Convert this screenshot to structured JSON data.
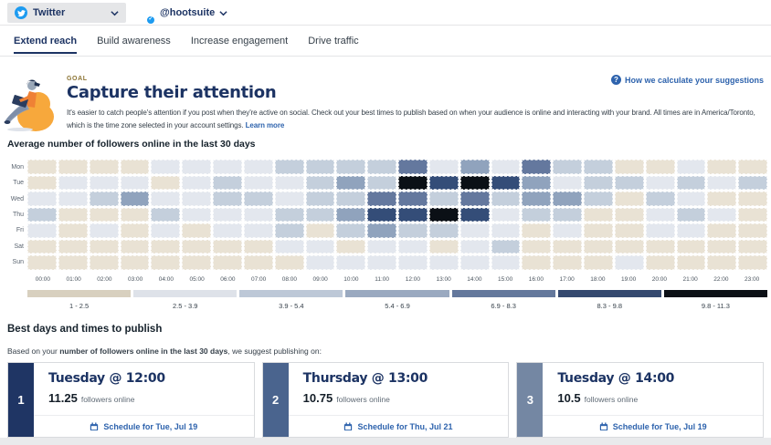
{
  "header": {
    "network": {
      "label": "Twitter"
    },
    "account": {
      "handle": "@hootsuite"
    }
  },
  "tabs": [
    {
      "label": "Extend reach",
      "active": true
    },
    {
      "label": "Build awareness",
      "active": false
    },
    {
      "label": "Increase engagement",
      "active": false
    },
    {
      "label": "Drive traffic",
      "active": false
    }
  ],
  "goal": {
    "eyebrow": "GOAL",
    "title": "Capture their attention",
    "description": "It's easier to catch people's attention if you post when they're active on social. Check out your best times to publish based on when your audience is online and interacting with your brand. All times are in America/Toronto, which is the time zone selected in your account settings. ",
    "learn_more": "Learn more",
    "help_link": "How we calculate your suggestions"
  },
  "chart_data": {
    "type": "heatmap",
    "title": "Average number of followers online in the last 30 days",
    "rows": [
      "Mon",
      "Tue",
      "Wed",
      "Thu",
      "Fri",
      "Sat",
      "Sun"
    ],
    "columns": [
      "00:00",
      "01:00",
      "02:00",
      "03:00",
      "04:00",
      "05:00",
      "06:00",
      "07:00",
      "08:00",
      "09:00",
      "10:00",
      "11:00",
      "12:00",
      "13:00",
      "14:00",
      "15:00",
      "16:00",
      "17:00",
      "18:00",
      "19:00",
      "20:00",
      "21:00",
      "22:00",
      "23:00"
    ],
    "note": "values are bin indices 1-7 mapping to legend ranges of average followers online",
    "values": [
      [
        1,
        1,
        1,
        1,
        2,
        2,
        2,
        2,
        3,
        3,
        3,
        3,
        5,
        2,
        4,
        2,
        5,
        3,
        3,
        1,
        1,
        2,
        1,
        1
      ],
      [
        1,
        2,
        2,
        2,
        1,
        2,
        3,
        2,
        2,
        3,
        4,
        3,
        7,
        6,
        7,
        6,
        4,
        2,
        3,
        3,
        2,
        3,
        2,
        3
      ],
      [
        2,
        2,
        3,
        4,
        2,
        2,
        3,
        3,
        2,
        3,
        3,
        5,
        5,
        3,
        5,
        3,
        4,
        4,
        3,
        1,
        3,
        2,
        1,
        1
      ],
      [
        3,
        1,
        1,
        1,
        3,
        2,
        2,
        2,
        3,
        3,
        4,
        6,
        6,
        7,
        6,
        2,
        3,
        3,
        1,
        1,
        2,
        3,
        2,
        1
      ],
      [
        2,
        1,
        2,
        1,
        2,
        1,
        2,
        2,
        3,
        1,
        3,
        4,
        3,
        3,
        2,
        2,
        1,
        2,
        1,
        1,
        2,
        2,
        1,
        1
      ],
      [
        1,
        1,
        1,
        1,
        1,
        1,
        1,
        1,
        2,
        2,
        1,
        2,
        2,
        1,
        2,
        3,
        1,
        1,
        1,
        1,
        1,
        1,
        1,
        1
      ],
      [
        1,
        1,
        1,
        1,
        1,
        1,
        1,
        1,
        1,
        2,
        2,
        2,
        2,
        2,
        2,
        2,
        1,
        1,
        1,
        2,
        1,
        1,
        1,
        1
      ]
    ],
    "legend": [
      "1 - 2.5",
      "2.5 - 3.9",
      "3.9 - 5.4",
      "5.4 - 6.9",
      "6.9 - 8.3",
      "8.3 - 9.8",
      "9.8 - 11.3"
    ],
    "legend_colors": [
      "#d8d0bf",
      "#dee2e9",
      "#bdc8d7",
      "#9aa9c0",
      "#64789c",
      "#35496f",
      "#0c1016"
    ],
    "cell_colors": [
      "#e9e2d4",
      "#e3e7ee",
      "#c4cfdc",
      "#90a3bd",
      "#64789e",
      "#344d78",
      "#0b1016"
    ]
  },
  "suggestions": {
    "heading": "Best days and times to publish",
    "intro_prefix": "Based on your ",
    "intro_bold": "number of followers online in the last 30 days",
    "intro_suffix": ", we suggest publishing on:",
    "cards": [
      {
        "rank": "1",
        "title": "Tuesday @ 12:00",
        "value": "11.25",
        "unit": "followers online",
        "cta": "Schedule for Tue, Jul 19",
        "band_color": "#1f3564"
      },
      {
        "rank": "2",
        "title": "Thursday @ 13:00",
        "value": "10.75",
        "unit": "followers online",
        "cta": "Schedule for Thu, Jul 21",
        "band_color": "#4a648e"
      },
      {
        "rank": "3",
        "title": "Tuesday @ 14:00",
        "value": "10.5",
        "unit": "followers online",
        "cta": "Schedule for Tue, Jul 19",
        "band_color": "#7487a3"
      }
    ]
  },
  "colors": {
    "brand_navy": "#1c3363",
    "link_blue": "#2e63ad",
    "twitter_blue": "#1d9bf0",
    "goal_eyebrow": "#8c7434"
  }
}
